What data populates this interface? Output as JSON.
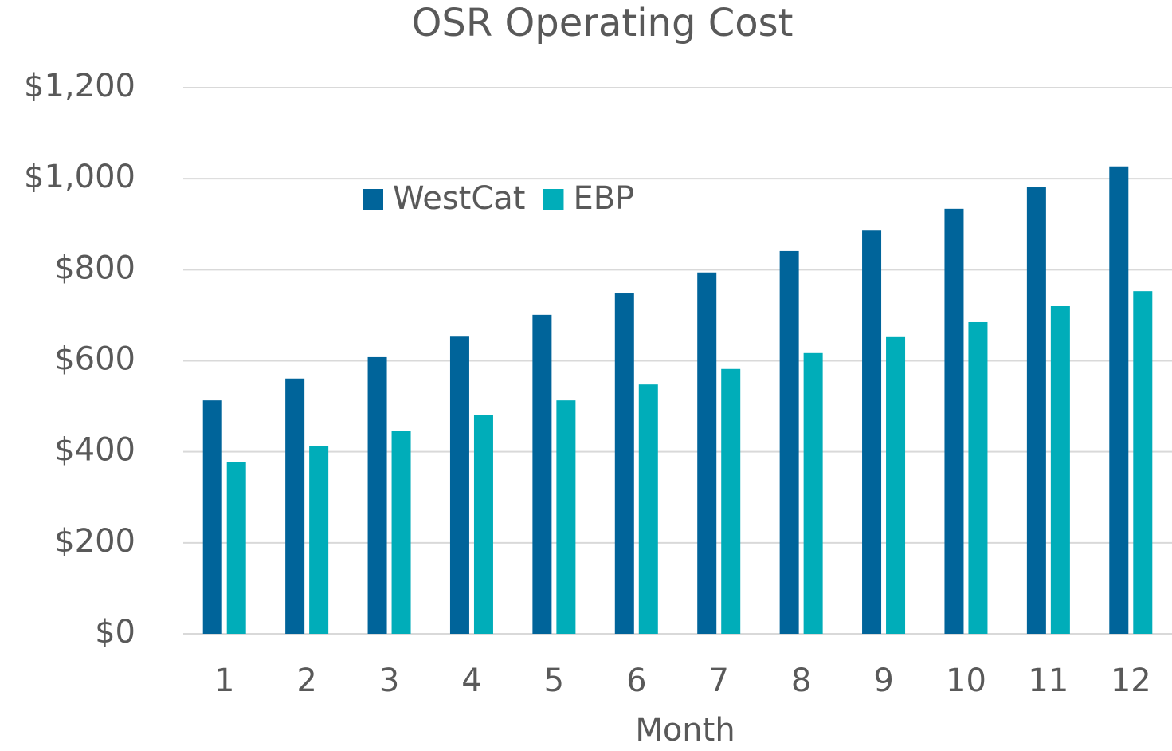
{
  "chart_data": {
    "type": "bar",
    "title": "OSR Operating Cost",
    "x_label": "Month",
    "categories": [
      "1",
      "2",
      "3",
      "4",
      "5",
      "6",
      "7",
      "8",
      "9",
      "10",
      "11",
      "12"
    ],
    "series": [
      {
        "name": "WestCat",
        "color": "#00649a",
        "values": [
          513,
          561,
          608,
          653,
          701,
          748,
          794,
          841,
          886,
          934,
          981,
          1027
        ]
      },
      {
        "name": "EBP",
        "color": "#00adb9",
        "values": [
          377,
          412,
          445,
          480,
          513,
          548,
          582,
          617,
          652,
          685,
          720,
          753
        ]
      }
    ],
    "ylim": [
      0,
      1200
    ],
    "yticks": [
      {
        "value": 0,
        "label": "$0"
      },
      {
        "value": 200,
        "label": "$200"
      },
      {
        "value": 400,
        "label": "$400"
      },
      {
        "value": 600,
        "label": "$600"
      },
      {
        "value": 800,
        "label": "$800"
      },
      {
        "value": 1000,
        "label": "$1,000"
      },
      {
        "value": 1200,
        "label": "$1,200"
      }
    ],
    "grid": true
  }
}
